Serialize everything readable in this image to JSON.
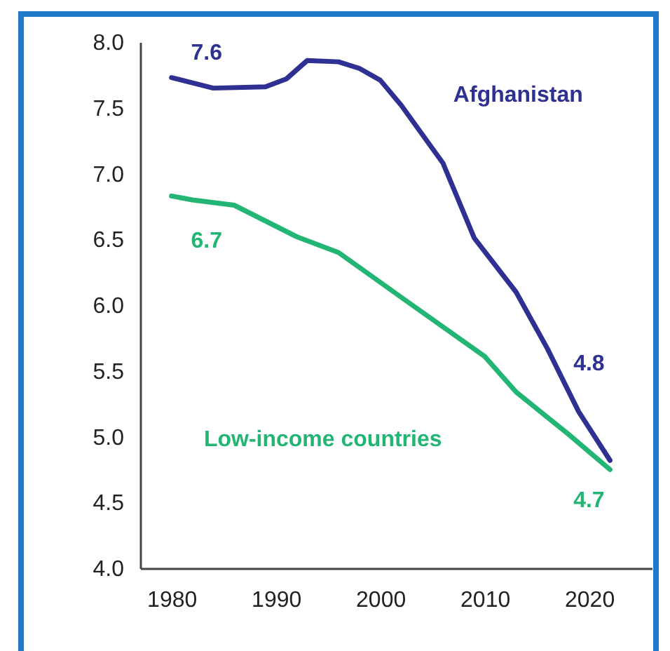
{
  "chart_data": {
    "type": "line",
    "xlim": [
      1977,
      2026
    ],
    "xticks": [
      1980,
      1990,
      2000,
      2010,
      2020
    ],
    "ylim": [
      4,
      8
    ],
    "yticks": [
      {
        "value": 4,
        "label": "4.0"
      },
      {
        "value": 4.5,
        "label": "4.5"
      },
      {
        "value": 5,
        "label": "5.0"
      },
      {
        "value": 5.5,
        "label": "5.5"
      },
      {
        "value": 6,
        "label": "6.0"
      },
      {
        "value": 6.5,
        "label": "6.5"
      },
      {
        "value": 7,
        "label": "7.0"
      },
      {
        "value": 7.5,
        "label": "7.5"
      },
      {
        "value": 8,
        "label": "8.0"
      }
    ],
    "grid": false,
    "series": [
      {
        "name": "Afghanistan",
        "color": "#2e3192",
        "x": [
          1980,
          1984,
          1989,
          1991,
          1993,
          1996,
          1998,
          2000,
          2002,
          2006,
          2009,
          2013,
          2016,
          2019,
          2022
        ],
        "values": [
          7.73,
          7.65,
          7.66,
          7.72,
          7.86,
          7.85,
          7.8,
          7.71,
          7.52,
          7.08,
          6.51,
          6.1,
          5.67,
          5.19,
          4.82
        ]
      },
      {
        "name": "Low-income countries",
        "color": "#22b573",
        "x": [
          1980,
          1982,
          1986,
          1992,
          1996,
          2002,
          2010,
          2013,
          2018,
          2022
        ],
        "values": [
          6.83,
          6.8,
          6.76,
          6.52,
          6.4,
          6.06,
          5.61,
          5.34,
          5.02,
          4.75
        ]
      }
    ],
    "annotations": [
      "7.6",
      "6.7",
      "4.8",
      "4.7"
    ]
  }
}
